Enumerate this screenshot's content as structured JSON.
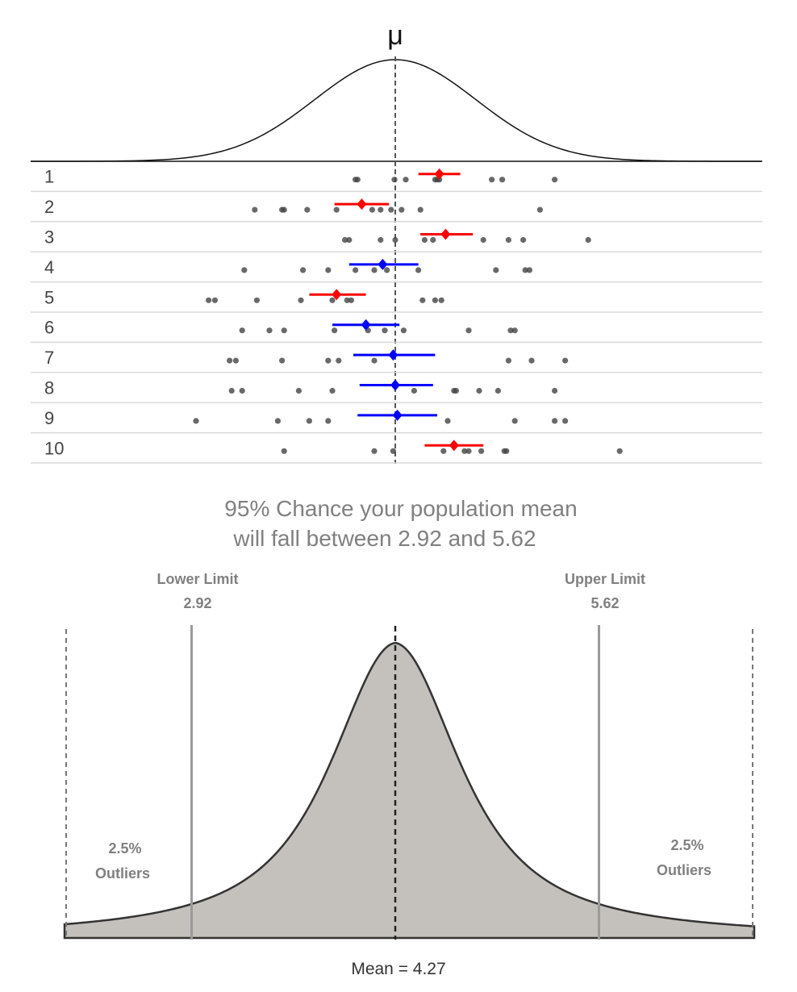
{
  "top_panel": {
    "mu_label": "μ",
    "samples": [
      {
        "label": "1",
        "mean": 1.05,
        "ci": [
          0.55,
          1.55
        ],
        "color": "#ff0000",
        "points": [
          -0.95,
          -0.9,
          -0.02,
          0.25,
          0.95,
          1.0,
          1.05,
          2.3,
          2.55,
          3.8
        ]
      },
      {
        "label": "2",
        "mean": -0.8,
        "ci": [
          -1.45,
          -0.15
        ],
        "color": "#ff0000",
        "points": [
          -3.35,
          -2.7,
          -2.65,
          -2.1,
          -1.4,
          -0.55,
          -0.35,
          -0.1,
          0.15,
          0.6,
          3.45
        ]
      },
      {
        "label": "3",
        "mean": 1.2,
        "ci": [
          0.6,
          1.85
        ],
        "color": "#ff0000",
        "points": [
          -1.2,
          -1.1,
          -0.35,
          0.0,
          0.7,
          0.9,
          2.1,
          2.7,
          3.05,
          4.6
        ]
      },
      {
        "label": "4",
        "mean": -0.3,
        "ci": [
          -1.1,
          0.55
        ],
        "color": "#0000ff",
        "points": [
          -3.6,
          -2.2,
          -1.6,
          -0.95,
          -0.5,
          -0.2,
          0.55,
          2.4,
          3.1,
          3.2
        ]
      },
      {
        "label": "5",
        "mean": -1.4,
        "ci": [
          -2.05,
          -0.7
        ],
        "color": "#ff0000",
        "points": [
          -4.45,
          -4.3,
          -3.3,
          -2.25,
          -1.5,
          -1.15,
          -1.05,
          0.65,
          0.95,
          1.1
        ]
      },
      {
        "label": "6",
        "mean": -0.7,
        "ci": [
          -1.5,
          0.1
        ],
        "color": "#0000ff",
        "points": [
          -3.65,
          -3.0,
          -2.65,
          -1.45,
          -0.65,
          -0.25,
          0.2,
          1.75,
          2.75,
          2.85
        ]
      },
      {
        "label": "7",
        "mean": -0.05,
        "ci": [
          -1.0,
          0.95
        ],
        "color": "#0000ff",
        "points": [
          -3.95,
          -3.8,
          -2.7,
          -1.6,
          -1.35,
          -0.5,
          2.7,
          3.25,
          4.05
        ]
      },
      {
        "label": "8",
        "mean": 0.0,
        "ci": [
          -0.85,
          0.9
        ],
        "color": "#0000ff",
        "points": [
          -3.9,
          -3.65,
          -2.3,
          -1.5,
          0.45,
          1.4,
          1.45,
          2.0,
          2.45,
          3.8
        ]
      },
      {
        "label": "9",
        "mean": 0.05,
        "ci": [
          -0.9,
          1.0
        ],
        "color": "#0000ff",
        "points": [
          -4.75,
          -2.8,
          -2.05,
          -1.6,
          1.25,
          2.85,
          3.8,
          4.05
        ]
      },
      {
        "label": "10",
        "mean": 1.4,
        "ci": [
          0.7,
          2.1
        ],
        "color": "#ff0000",
        "points": [
          -2.65,
          -0.5,
          -0.05,
          1.15,
          1.65,
          1.75,
          2.05,
          2.6,
          2.65,
          5.35
        ]
      }
    ]
  },
  "headline": {
    "line1": "95% Chance your population mean",
    "line2": "will fall between 2.92 and 5.62"
  },
  "bottom_panel": {
    "lower_limit": {
      "title": "Lower Limit",
      "value": "2.92",
      "x_value": 2.92
    },
    "upper_limit": {
      "title": "Upper Limit",
      "value": "5.62",
      "x_value": 5.62
    },
    "left_tail": {
      "line1": "2.5%",
      "line2": "Outliers"
    },
    "right_tail": {
      "line1": "2.5%",
      "line2": "Outliers"
    },
    "mean_label": "Mean = 4.27",
    "mean_value": 4.27
  },
  "colors": {
    "curve": "#111111",
    "bell_fill": "#c4c0bb",
    "bell_stroke": "#333333",
    "limit_line": "#9a9a9a",
    "dot": "#444444",
    "separator": "#d9d9d9"
  }
}
